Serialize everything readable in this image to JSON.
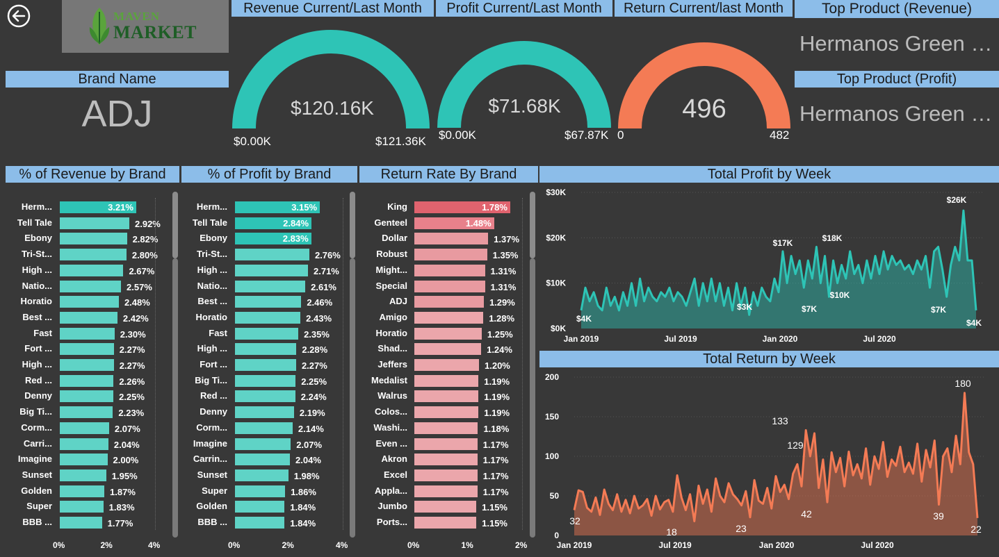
{
  "header": {
    "revenue_title": "Revenue Current/Last Month",
    "profit_title": "Profit Current/Last Month",
    "return_title": "Return Current/last Month",
    "top_rev_title": "Top Product (Revenue)",
    "top_profit_title": "Top Product (Profit)",
    "brand_title": "Brand Name"
  },
  "logo": {
    "line1": "MAVEN",
    "line2": "MARKET"
  },
  "brand": {
    "name": "ADJ"
  },
  "top_products": {
    "revenue": "Hermanos Green …",
    "profit": "Hermanos Green …"
  },
  "gauges": {
    "revenue": {
      "value": "$120.16K",
      "min": "$0.00K",
      "max": "$121.36K",
      "color": "#2ec4b6"
    },
    "profit": {
      "value": "$71.68K",
      "min": "$0.00K",
      "max": "$67.87K",
      "color": "#2ec4b6"
    },
    "returns": {
      "value": "496",
      "min": "0",
      "max": "482",
      "color": "#f47b55"
    }
  },
  "revenue_by_brand": {
    "title": "% of Revenue by Brand",
    "axis": [
      "0%",
      "2%",
      "4%"
    ],
    "axis_max": 4,
    "rows": [
      {
        "name": "Herm...",
        "value": 3.21,
        "label": "3.21%"
      },
      {
        "name": "Tell Tale",
        "value": 2.92,
        "label": "2.92%"
      },
      {
        "name": "Ebony",
        "value": 2.82,
        "label": "2.82%"
      },
      {
        "name": "Tri-St...",
        "value": 2.8,
        "label": "2.80%"
      },
      {
        "name": "High ...",
        "value": 2.67,
        "label": "2.67%"
      },
      {
        "name": "Natio...",
        "value": 2.57,
        "label": "2.57%"
      },
      {
        "name": "Horatio",
        "value": 2.48,
        "label": "2.48%"
      },
      {
        "name": "Best ...",
        "value": 2.42,
        "label": "2.42%"
      },
      {
        "name": "Fast",
        "value": 2.3,
        "label": "2.30%"
      },
      {
        "name": "Fort ...",
        "value": 2.27,
        "label": "2.27%"
      },
      {
        "name": "High ...",
        "value": 2.27,
        "label": "2.27%"
      },
      {
        "name": "Red ...",
        "value": 2.26,
        "label": "2.26%"
      },
      {
        "name": "Denny",
        "value": 2.25,
        "label": "2.25%"
      },
      {
        "name": "Big Ti...",
        "value": 2.23,
        "label": "2.23%"
      },
      {
        "name": "Corm...",
        "value": 2.07,
        "label": "2.07%"
      },
      {
        "name": "Carri...",
        "value": 2.04,
        "label": "2.04%"
      },
      {
        "name": "Imagine",
        "value": 2.0,
        "label": "2.00%"
      },
      {
        "name": "Sunset",
        "value": 1.95,
        "label": "1.95%"
      },
      {
        "name": "Golden",
        "value": 1.87,
        "label": "1.87%"
      },
      {
        "name": "Super",
        "value": 1.83,
        "label": "1.83%"
      },
      {
        "name": "BBB ...",
        "value": 1.77,
        "label": "1.77%"
      }
    ]
  },
  "profit_by_brand": {
    "title": "% of Profit by Brand",
    "axis": [
      "0%",
      "2%",
      "4%"
    ],
    "axis_max": 4,
    "rows": [
      {
        "name": "Herm...",
        "value": 3.15,
        "label": "3.15%"
      },
      {
        "name": "Tell Tale",
        "value": 2.84,
        "label": "2.84%"
      },
      {
        "name": "Ebony",
        "value": 2.83,
        "label": "2.83%"
      },
      {
        "name": "Tri-St...",
        "value": 2.76,
        "label": "2.76%"
      },
      {
        "name": "High ...",
        "value": 2.71,
        "label": "2.71%"
      },
      {
        "name": "Natio...",
        "value": 2.61,
        "label": "2.61%"
      },
      {
        "name": "Best ...",
        "value": 2.46,
        "label": "2.46%"
      },
      {
        "name": "Horatio",
        "value": 2.43,
        "label": "2.43%"
      },
      {
        "name": "Fast",
        "value": 2.35,
        "label": "2.35%"
      },
      {
        "name": "High ...",
        "value": 2.28,
        "label": "2.28%"
      },
      {
        "name": "Fort ...",
        "value": 2.27,
        "label": "2.27%"
      },
      {
        "name": "Big Ti...",
        "value": 2.25,
        "label": "2.25%"
      },
      {
        "name": "Red ...",
        "value": 2.24,
        "label": "2.24%"
      },
      {
        "name": "Denny",
        "value": 2.19,
        "label": "2.19%"
      },
      {
        "name": "Corm...",
        "value": 2.14,
        "label": "2.14%"
      },
      {
        "name": "Imagine",
        "value": 2.07,
        "label": "2.07%"
      },
      {
        "name": "Carrin...",
        "value": 2.04,
        "label": "2.04%"
      },
      {
        "name": "Sunset",
        "value": 1.98,
        "label": "1.98%"
      },
      {
        "name": "Super",
        "value": 1.86,
        "label": "1.86%"
      },
      {
        "name": "Golden",
        "value": 1.84,
        "label": "1.84%"
      },
      {
        "name": "BBB ...",
        "value": 1.84,
        "label": "1.84%"
      }
    ]
  },
  "return_by_brand": {
    "title": "Return Rate By Brand",
    "axis": [
      "0%",
      "1%",
      "2%"
    ],
    "axis_max": 2,
    "rows": [
      {
        "name": "King",
        "value": 1.78,
        "label": "1.78%"
      },
      {
        "name": "Genteel",
        "value": 1.48,
        "label": "1.48%"
      },
      {
        "name": "Dollar",
        "value": 1.37,
        "label": "1.37%"
      },
      {
        "name": "Robust",
        "value": 1.35,
        "label": "1.35%"
      },
      {
        "name": "Might...",
        "value": 1.31,
        "label": "1.31%"
      },
      {
        "name": "Special",
        "value": 1.31,
        "label": "1.31%"
      },
      {
        "name": "ADJ",
        "value": 1.29,
        "label": "1.29%"
      },
      {
        "name": "Amigo",
        "value": 1.28,
        "label": "1.28%"
      },
      {
        "name": "Horatio",
        "value": 1.25,
        "label": "1.25%"
      },
      {
        "name": "Shad...",
        "value": 1.24,
        "label": "1.24%"
      },
      {
        "name": "Jeffers",
        "value": 1.2,
        "label": "1.20%"
      },
      {
        "name": "Medalist",
        "value": 1.19,
        "label": "1.19%"
      },
      {
        "name": "Walrus",
        "value": 1.19,
        "label": "1.19%"
      },
      {
        "name": "Colos...",
        "value": 1.19,
        "label": "1.19%"
      },
      {
        "name": "Washi...",
        "value": 1.18,
        "label": "1.18%"
      },
      {
        "name": "Even ...",
        "value": 1.17,
        "label": "1.17%"
      },
      {
        "name": "Akron",
        "value": 1.17,
        "label": "1.17%"
      },
      {
        "name": "Excel",
        "value": 1.17,
        "label": "1.17%"
      },
      {
        "name": "Appla...",
        "value": 1.17,
        "label": "1.17%"
      },
      {
        "name": "Jumbo",
        "value": 1.15,
        "label": "1.15%"
      },
      {
        "name": "Ports...",
        "value": 1.15,
        "label": "1.15%"
      }
    ]
  },
  "chart_data": [
    {
      "type": "area",
      "title": "Total Profit by Week",
      "color": "#2ec4b6",
      "ylim": [
        0,
        30000
      ],
      "yticks": [
        "$0K",
        "$10K",
        "$20K",
        "$30K"
      ],
      "xticks": [
        "Jan 2019",
        "Jul 2019",
        "Jan 2020",
        "Jul 2020"
      ],
      "annotations": [
        "$4K",
        "$3K",
        "$17K",
        "$7K",
        "$18K",
        "$10K",
        "$26K",
        "$7K",
        "$4K"
      ],
      "series": [
        {
          "values": [
            4000,
            9000,
            6000,
            8000,
            5000,
            4000,
            9000,
            5000,
            7000,
            4000,
            8000,
            5000,
            10000,
            5000,
            11000,
            6000,
            9000,
            7000,
            6000,
            8000,
            7000,
            9000,
            6000,
            8000,
            7000,
            5000,
            8000,
            11000,
            5000,
            10000,
            6000,
            11000,
            6000,
            10000,
            5000,
            9000,
            4000,
            10000,
            5000,
            9000,
            3000,
            8000,
            5000,
            9000,
            7000,
            6000,
            11000,
            8000,
            17000,
            10000,
            16000,
            12000,
            15000,
            9000,
            15000,
            11000,
            18000,
            10000,
            16000,
            7000,
            15000,
            10000,
            14000,
            11000,
            17000,
            12000,
            14000,
            10000,
            15000,
            11000,
            16000,
            12000,
            17000,
            13000,
            16000,
            14000,
            15000,
            13000,
            14000,
            12000,
            15000,
            13000,
            16000,
            9000,
            17000,
            18000,
            13000,
            7000,
            14000,
            18000,
            15000,
            26000,
            15000,
            15000,
            4000
          ]
        }
      ]
    },
    {
      "type": "area",
      "title": "Total Return by Week",
      "color": "#f47b55",
      "ylim": [
        0,
        200
      ],
      "yticks": [
        "0",
        "50",
        "100",
        "150",
        "200"
      ],
      "xticks": [
        "Jan 2019",
        "Jul 2019",
        "Jan 2020",
        "Jul 2020"
      ],
      "annotations": [
        "32",
        "18",
        "23",
        "133",
        "129",
        "42",
        "39",
        "180",
        "22"
      ],
      "series": [
        {
          "values": [
            32,
            57,
            55,
            35,
            30,
            48,
            26,
            58,
            40,
            32,
            52,
            30,
            45,
            28,
            50,
            34,
            38,
            46,
            25,
            50,
            33,
            42,
            45,
            30,
            76,
            48,
            32,
            52,
            18,
            63,
            40,
            58,
            30,
            72,
            50,
            42,
            66,
            52,
            46,
            38,
            56,
            23,
            70,
            44,
            40,
            60,
            34,
            75,
            55,
            64,
            46,
            78,
            90,
            62,
            133,
            100,
            129,
            60,
            96,
            42,
            105,
            80,
            98,
            62,
            106,
            76,
            90,
            72,
            110,
            64,
            100,
            84,
            118,
            74,
            96,
            88,
            112,
            80,
            92,
            78,
            116,
            68,
            108,
            86,
            120,
            39,
            100,
            110,
            80,
            126,
            90,
            180,
            105,
            90,
            22
          ]
        }
      ]
    }
  ]
}
